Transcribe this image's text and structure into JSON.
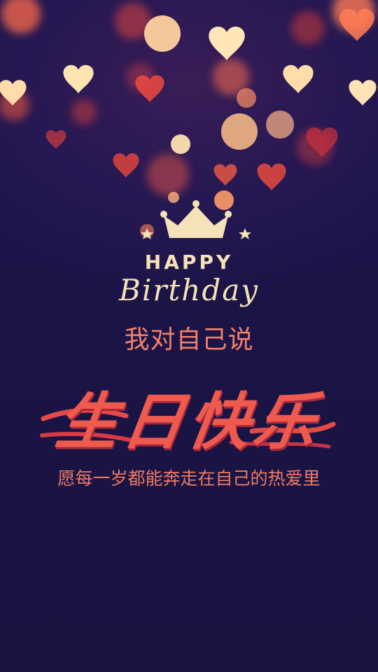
{
  "card": {
    "happy": "HAPPY",
    "birthday": "Birthday",
    "line1": "我对自己说",
    "title": "生日快乐",
    "line2": "愿每一岁都能奔走在自己的热爱里"
  },
  "colors": {
    "background": "#1b1446",
    "gold": "#f6e2b8",
    "coral": "#ef5a4e",
    "light_coral": "#f2806a"
  },
  "icons": {
    "crown": "crown-icon",
    "stars": "star-icon",
    "hearts": "heart-icon"
  }
}
